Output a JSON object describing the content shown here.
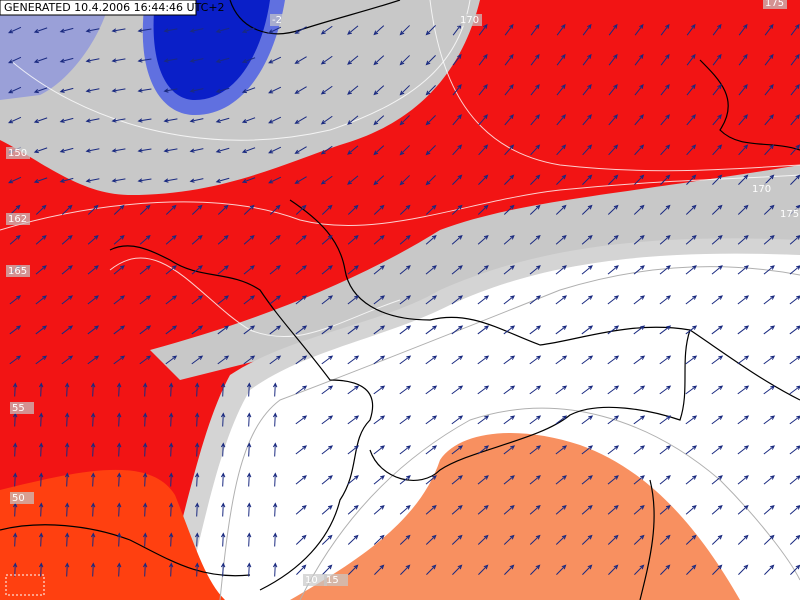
{
  "header": {
    "generated": "GENERATED 10.4.2006 16:44:46 UTC+2"
  },
  "contour_labels": [
    "175",
    "170",
    "175",
    "165",
    "162",
    "150",
    "55",
    "50",
    "-2",
    "170",
    "10",
    "15"
  ]
}
